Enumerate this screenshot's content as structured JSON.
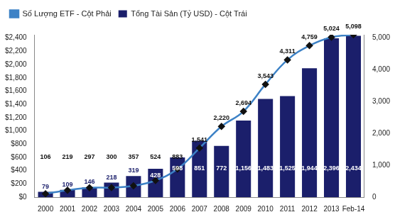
{
  "chart_data": {
    "type": "bar",
    "categories": [
      "2000",
      "2001",
      "2002",
      "2003",
      "2004",
      "2005",
      "2006",
      "2007",
      "2008",
      "2009",
      "2010",
      "2011",
      "2012",
      "2013",
      "Feb-14"
    ],
    "series": [
      {
        "name": "Tổng Tài Sản (Tỷ USD) - Cột Trái",
        "type": "bar",
        "color": "#1b1f6b",
        "values": [
          79,
          109,
          146,
          218,
          319,
          428,
          598,
          851,
          772,
          1156,
          1483,
          1525,
          1944,
          2396,
          2434
        ],
        "value_labels": [
          "79",
          "109",
          "146",
          "218",
          "319",
          "428",
          "598",
          "851",
          "772",
          "1,156",
          "1,483",
          "1,525",
          "1,944",
          "2,396",
          "2,434"
        ]
      },
      {
        "name": "Số Lượng ETF - Cột Phải",
        "type": "line",
        "axis": "y2",
        "color": "#3d82c6",
        "marker": "diamond",
        "values": [
          106,
          219,
          297,
          300,
          357,
          524,
          883,
          1541,
          2220,
          2694,
          3543,
          4311,
          4759,
          5024,
          5098
        ],
        "value_labels": [
          "106",
          "219",
          "297",
          "300",
          "357",
          "524",
          "883",
          "1,541",
          "2,220",
          "2,694",
          "3,543",
          "4,311",
          "4,759",
          "5,024",
          "5,098"
        ]
      }
    ],
    "ylim": [
      0,
      2450
    ],
    "yticks": [
      {
        "value": 0,
        "label": "$0"
      },
      {
        "value": 200,
        "label": "$200"
      },
      {
        "value": 400,
        "label": "$400"
      },
      {
        "value": 600,
        "label": "$600"
      },
      {
        "value": 800,
        "label": "$800"
      },
      {
        "value": 1000,
        "label": "$1,000"
      },
      {
        "value": 1200,
        "label": "$1,200"
      },
      {
        "value": 1400,
        "label": "$1,400"
      },
      {
        "value": 1600,
        "label": "$1,600"
      },
      {
        "value": 1800,
        "label": "$1,800"
      },
      {
        "value": 2000,
        "label": "$2,000"
      },
      {
        "value": 2200,
        "label": "$2,200"
      },
      {
        "value": 2400,
        "label": "$2,400"
      }
    ],
    "y2lim": [
      0,
      5100
    ],
    "y2ticks": [
      0,
      {
        "value": 1000,
        "label": "1,000"
      },
      {
        "value": 2000,
        "label": "2,000"
      },
      {
        "value": 3000,
        "label": "3,000"
      },
      {
        "value": 4000,
        "label": "4,000"
      },
      {
        "value": 5000,
        "label": "5,000"
      }
    ],
    "grid": false,
    "legend": "top",
    "data_labels": true
  }
}
